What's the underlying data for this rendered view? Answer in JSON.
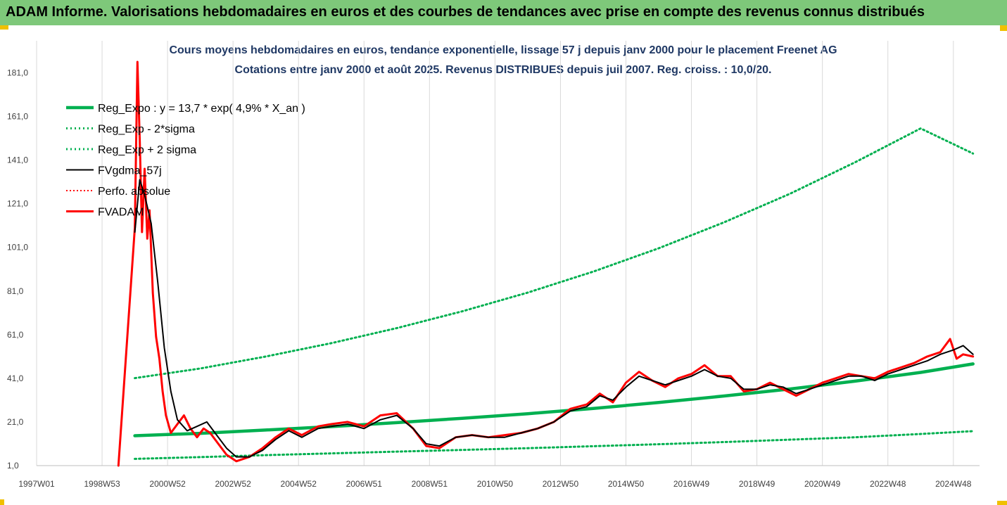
{
  "banner": {
    "title": "ADAM Informe. Valorisations hebdomadaires en euros et des courbes de tendances avec prise en compte des revenus connus distribués",
    "color": "#7ec87a"
  },
  "chart_data": {
    "type": "line",
    "title_line1": "Cours moyens hebdomadaires en euros, tendance exponentielle, lissage 57 j depuis janv 2000 pour le placement Freenet AG",
    "title_line2": "Cotations entre janv 2000 et août 2025. Revenus DISTRIBUES depuis juil 2007. Reg. croiss. : 10,0/20.",
    "x_tick_labels": [
      "1997W01",
      "1998W53",
      "2000W52",
      "2002W52",
      "2004W52",
      "2006W51",
      "2008W51",
      "2010W50",
      "2012W50",
      "2014W50",
      "2016W49",
      "2018W49",
      "2020W49",
      "2022W48",
      "2024W48"
    ],
    "x_tick_years": [
      1997.0,
      1999.0,
      2001.0,
      2003.0,
      2005.0,
      2007.0,
      2009.0,
      2011.0,
      2013.0,
      2015.0,
      2017.0,
      2019.0,
      2021.0,
      2023.0,
      2025.0
    ],
    "xlim": [
      1997.0,
      2025.8
    ],
    "y_tick_labels": [
      "1,0",
      "21,0",
      "41,0",
      "61,0",
      "81,0",
      "101,0",
      "121,0",
      "141,0",
      "161,0",
      "181,0"
    ],
    "y_ticks": [
      1,
      21,
      41,
      61,
      81,
      101,
      121,
      141,
      161,
      181
    ],
    "ylim": [
      1,
      186
    ],
    "grid": "vertical",
    "legend_position": "top-left",
    "legend": [
      {
        "label": "Reg_Expo : y = 13,7 * exp( 4,9% *  X_an )",
        "color": "#00b050",
        "style": "solid"
      },
      {
        "label": "Reg_Exp - 2*sigma",
        "color": "#00b050",
        "style": "dotted"
      },
      {
        "label": "Reg_Exp + 2 sigma",
        "color": "#00b050",
        "style": "dotted"
      },
      {
        "label": "FVgdma_57j",
        "color": "#000000",
        "style": "solid"
      },
      {
        "label": "Perfo. absolue",
        "color": "#ff0000",
        "style": "dotted"
      },
      {
        "label": "FVADAM",
        "color": "#ff0000",
        "style": "solid"
      }
    ],
    "series": [
      {
        "name": "Reg_Expo : y = 13,7 * exp( 4,9% *  X_an )",
        "x": [
          2000.0,
          2002.0,
          2004.0,
          2006.0,
          2008.0,
          2010.0,
          2012.0,
          2014.0,
          2016.0,
          2018.0,
          2020.0,
          2022.0,
          2024.0,
          2025.6
        ],
        "values": [
          14.7,
          15.8,
          17.3,
          18.9,
          20.7,
          22.7,
          24.8,
          27.2,
          29.9,
          32.9,
          36.1,
          39.7,
          43.7,
          47.6
        ]
      },
      {
        "name": "Reg_Exp - 2*sigma",
        "x": [
          2000.0,
          2002.0,
          2004.0,
          2006.0,
          2008.0,
          2010.0,
          2012.0,
          2014.0,
          2016.0,
          2018.0,
          2020.0,
          2022.0,
          2024.0,
          2025.6
        ],
        "values": [
          4.1,
          4.9,
          5.8,
          6.6,
          7.4,
          8.2,
          9.0,
          9.9,
          10.8,
          11.8,
          12.9,
          14.0,
          15.5,
          16.8
        ]
      },
      {
        "name": "Reg_Exp + 2 sigma",
        "x": [
          2000.0,
          2002.0,
          2004.0,
          2006.0,
          2008.0,
          2010.0,
          2012.0,
          2014.0,
          2016.0,
          2018.0,
          2020.0,
          2022.0,
          2024.0,
          2025.6
        ],
        "values": [
          41.1,
          45.5,
          51.0,
          57.1,
          64.0,
          71.7,
          80.3,
          89.9,
          100.6,
          112.5,
          125.5,
          140.0,
          155.5,
          144.0
        ]
      },
      {
        "name": "FVgdma_57j",
        "x": [
          2000.0,
          2000.15,
          2000.3,
          2000.5,
          2000.7,
          2000.9,
          2001.1,
          2001.3,
          2001.6,
          2001.9,
          2002.2,
          2002.5,
          2002.8,
          2003.1,
          2003.5,
          2003.9,
          2004.3,
          2004.7,
          2005.1,
          2005.6,
          2006.0,
          2006.5,
          2007.0,
          2007.5,
          2008.0,
          2008.5,
          2008.9,
          2009.3,
          2009.8,
          2010.3,
          2010.8,
          2011.3,
          2011.8,
          2012.3,
          2012.8,
          2013.3,
          2013.8,
          2014.2,
          2014.6,
          2015.0,
          2015.4,
          2015.8,
          2016.2,
          2016.6,
          2017.0,
          2017.4,
          2017.8,
          2018.2,
          2018.6,
          2019.0,
          2019.4,
          2019.8,
          2020.2,
          2020.6,
          2021.0,
          2021.4,
          2021.8,
          2022.2,
          2022.6,
          2023.0,
          2023.4,
          2023.8,
          2024.2,
          2024.6,
          2025.0,
          2025.3,
          2025.6
        ],
        "values": [
          108.0,
          132.0,
          125.0,
          112.0,
          85.0,
          55.0,
          35.0,
          22.0,
          17.0,
          19.0,
          21.0,
          15.0,
          9.0,
          5.0,
          5.0,
          8.0,
          13.0,
          17.0,
          14.0,
          18.0,
          19.0,
          20.0,
          18.0,
          22.0,
          24.0,
          18.0,
          11.0,
          10.0,
          14.0,
          15.0,
          14.0,
          14.0,
          16.0,
          18.0,
          21.0,
          26.0,
          28.0,
          33.0,
          31.0,
          37.0,
          42.0,
          40.0,
          38.0,
          40.0,
          42.0,
          45.0,
          42.0,
          41.0,
          36.0,
          36.0,
          38.0,
          37.0,
          34.0,
          36.0,
          38.0,
          40.0,
          42.0,
          42.0,
          40.0,
          43.0,
          45.0,
          47.0,
          49.0,
          52.0,
          54.0,
          56.0,
          52.0
        ]
      },
      {
        "name": "FVADAM",
        "x": [
          1999.5,
          1999.5,
          2000.0,
          2000.08,
          2000.15,
          2000.22,
          2000.3,
          2000.38,
          2000.45,
          2000.55,
          2000.65,
          2000.75,
          2000.85,
          2000.95,
          2001.1,
          2001.3,
          2001.5,
          2001.7,
          2001.9,
          2002.1,
          2002.3,
          2002.5,
          2002.8,
          2003.1,
          2003.5,
          2003.9,
          2004.3,
          2004.7,
          2005.1,
          2005.6,
          2006.0,
          2006.5,
          2007.0,
          2007.5,
          2008.0,
          2008.5,
          2008.9,
          2009.3,
          2009.8,
          2010.3,
          2010.8,
          2011.3,
          2011.8,
          2012.3,
          2012.8,
          2013.3,
          2013.8,
          2014.2,
          2014.6,
          2015.0,
          2015.4,
          2015.8,
          2016.2,
          2016.6,
          2017.0,
          2017.4,
          2017.8,
          2018.2,
          2018.6,
          2019.0,
          2019.4,
          2019.8,
          2020.2,
          2020.6,
          2021.0,
          2021.4,
          2021.8,
          2022.2,
          2022.6,
          2023.0,
          2023.4,
          2023.8,
          2024.2,
          2024.6,
          2024.9,
          2025.1,
          2025.3,
          2025.6
        ],
        "values": [
          1.0,
          1.0,
          110.0,
          186.0,
          150.0,
          108.0,
          137.0,
          105.0,
          118.0,
          80.0,
          60.0,
          50.0,
          35.0,
          24.0,
          16.0,
          20.0,
          24.0,
          18.0,
          14.0,
          18.0,
          16.0,
          12.0,
          6.0,
          3.0,
          5.0,
          9.0,
          14.0,
          18.0,
          15.0,
          19.0,
          20.0,
          21.0,
          19.0,
          24.0,
          25.0,
          18.0,
          10.0,
          9.0,
          14.0,
          15.0,
          14.0,
          15.0,
          16.0,
          18.0,
          21.0,
          27.0,
          29.0,
          34.0,
          30.0,
          39.0,
          44.0,
          40.0,
          37.0,
          41.0,
          43.0,
          47.0,
          42.0,
          42.0,
          35.0,
          36.0,
          39.0,
          36.0,
          33.0,
          36.0,
          39.0,
          41.0,
          43.0,
          42.0,
          41.0,
          44.0,
          46.0,
          48.0,
          51.0,
          53.0,
          59.0,
          50.0,
          52.0,
          51.0
        ]
      }
    ]
  }
}
